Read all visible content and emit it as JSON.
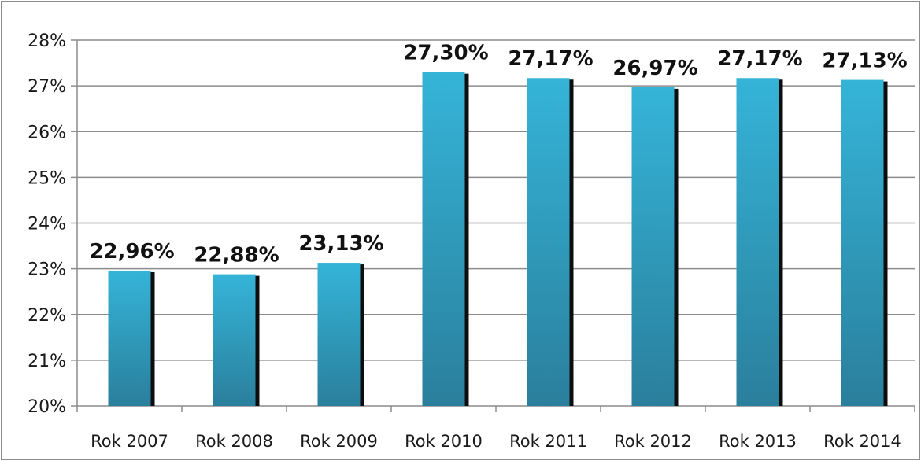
{
  "chart_data": {
    "type": "bar",
    "categories": [
      "Rok 2007",
      "Rok 2008",
      "Rok 2009",
      "Rok 2010",
      "Rok 2011",
      "Rok 2012",
      "Rok 2013",
      "Rok 2014"
    ],
    "values": [
      22.96,
      22.88,
      23.13,
      27.3,
      27.17,
      26.97,
      27.17,
      27.13
    ],
    "data_labels": [
      "22,96%",
      "22,88%",
      "23,13%",
      "27,30%",
      "27,17%",
      "26,97%",
      "27,17%",
      "27,13%"
    ],
    "y_ticks": [
      20,
      21,
      22,
      23,
      24,
      25,
      26,
      27,
      28
    ],
    "y_tick_labels": [
      "20%",
      "21%",
      "22%",
      "23%",
      "24%",
      "25%",
      "26%",
      "27%",
      "28%"
    ],
    "ylim": [
      20,
      28
    ],
    "grid": true,
    "legend": "none",
    "colors": {
      "bar_top": "#35b4d8",
      "bar_bottom": "#2a7f9c",
      "bar_shadow": "#0d0d0d",
      "grid": "#8c8c8c",
      "frame": "#8c8c8c"
    }
  }
}
